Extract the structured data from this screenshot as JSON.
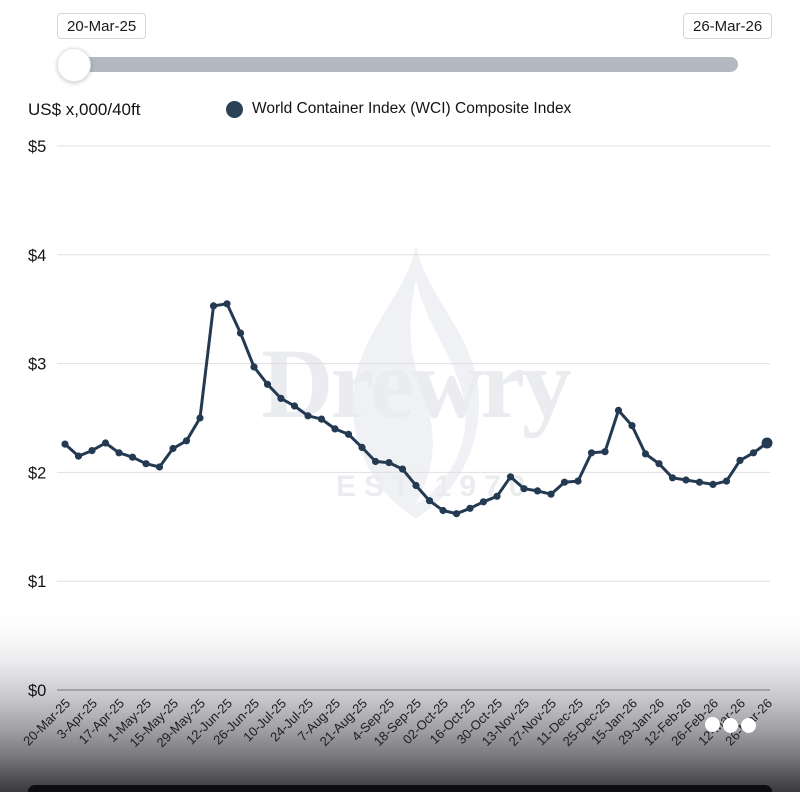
{
  "slider": {
    "start_label": "20-Mar-25",
    "end_label": "26-Mar-26"
  },
  "chart_header": {
    "units_label": "US$ x,000/40ft",
    "legend": {
      "label": "World Container Index (WCI) Composite Index",
      "marker_color": "#2a4156"
    }
  },
  "watermark": {
    "brand": "Drewry",
    "tagline": "EST 1970"
  },
  "chart_data": {
    "type": "line",
    "title": "",
    "ylabel": "US$ x,000/40ft",
    "xlabel": "",
    "ylim": [
      0,
      5
    ],
    "grid": true,
    "legend_position": "top",
    "x_tick_label_every": 2,
    "y_ticks": [
      {
        "value": 5,
        "label": "$5"
      },
      {
        "value": 4,
        "label": "$4"
      },
      {
        "value": 3,
        "label": "$3"
      },
      {
        "value": 2,
        "label": "$2"
      },
      {
        "value": 1,
        "label": "$1"
      },
      {
        "value": 0,
        "label": "$0"
      }
    ],
    "categories": [
      "20-Mar-25",
      "27-Mar-25",
      "3-Apr-25",
      "10-Apr-25",
      "17-Apr-25",
      "24-Apr-25",
      "1-May-25",
      "8-May-25",
      "15-May-25",
      "22-May-25",
      "29-May-25",
      "5-Jun-25",
      "12-Jun-25",
      "19-Jun-25",
      "26-Jun-25",
      "3-Jul-25",
      "10-Jul-25",
      "17-Jul-25",
      "24-Jul-25",
      "31-Jul-25",
      "7-Aug-25",
      "14-Aug-25",
      "21-Aug-25",
      "28-Aug-25",
      "4-Sep-25",
      "11-Sep-25",
      "18-Sep-25",
      "25-Sep-25",
      "02-Oct-25",
      "9-Oct-25",
      "16-Oct-25",
      "23-Oct-25",
      "30-Oct-25",
      "6-Nov-25",
      "13-Nov-25",
      "20-Nov-25",
      "27-Nov-25",
      "4-Dec-25",
      "11-Dec-25",
      "18-Dec-25",
      "25-Dec-25",
      "8-Jan-26",
      "15-Jan-26",
      "22-Jan-26",
      "29-Jan-26",
      "5-Feb-26",
      "12-Feb-26",
      "19-Feb-26",
      "26-Feb-26",
      "5-Mar-26",
      "12-Mar-26",
      "19-Mar-26",
      "26-Mar-26"
    ],
    "series": [
      {
        "name": "World Container Index (WCI) Composite Index",
        "color": "#243a52",
        "values": [
          2.26,
          2.15,
          2.2,
          2.27,
          2.18,
          2.14,
          2.08,
          2.05,
          2.22,
          2.29,
          2.5,
          3.53,
          3.55,
          3.28,
          2.97,
          2.81,
          2.68,
          2.61,
          2.52,
          2.49,
          2.4,
          2.35,
          2.23,
          2.1,
          2.09,
          2.03,
          1.88,
          1.74,
          1.65,
          1.62,
          1.67,
          1.73,
          1.78,
          1.96,
          1.85,
          1.83,
          1.8,
          1.91,
          1.92,
          2.18,
          2.19,
          2.57,
          2.43,
          2.17,
          2.08,
          1.95,
          1.93,
          1.91,
          1.89,
          1.92,
          2.11,
          2.18,
          2.27
        ]
      }
    ]
  }
}
